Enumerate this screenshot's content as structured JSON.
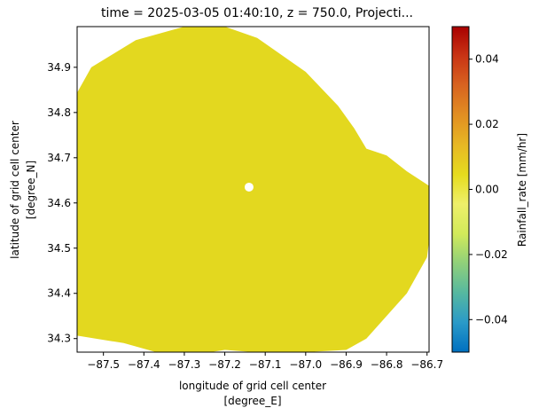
{
  "chart_data": {
    "type": "heatmap",
    "title": "time = 2025-03-05 01:40:10, z = 750.0, Projecti...",
    "xlabel": "longitude of grid cell center",
    "xlabel_units": "[degree_E]",
    "ylabel": "latitude of grid cell center",
    "ylabel_units": "[degree_N]",
    "xlim": [
      -87.565,
      -86.695
    ],
    "ylim": [
      34.27,
      34.99
    ],
    "x_ticks": [
      {
        "value": -87.5,
        "label": "−87.5"
      },
      {
        "value": -87.4,
        "label": "−87.4"
      },
      {
        "value": -87.3,
        "label": "−87.3"
      },
      {
        "value": -87.2,
        "label": "−87.2"
      },
      {
        "value": -87.1,
        "label": "−87.1"
      },
      {
        "value": -87.0,
        "label": "−87.0"
      },
      {
        "value": -86.9,
        "label": "−86.9"
      },
      {
        "value": -86.8,
        "label": "−86.8"
      },
      {
        "value": -86.7,
        "label": "−86.7"
      }
    ],
    "y_ticks": [
      {
        "value": 34.3,
        "label": "34.3"
      },
      {
        "value": 34.4,
        "label": "34.4"
      },
      {
        "value": 34.5,
        "label": "34.5"
      },
      {
        "value": 34.6,
        "label": "34.6"
      },
      {
        "value": 34.7,
        "label": "34.7"
      },
      {
        "value": 34.8,
        "label": "34.8"
      },
      {
        "value": 34.9,
        "label": "34.9"
      }
    ],
    "field": {
      "value": 0.0,
      "color": "#e3d81f",
      "footprint_lon": [
        -87.59,
        -87.45,
        -87.35,
        -87.27,
        -87.2,
        -87.1,
        -87.0,
        -86.9,
        -86.85,
        -86.75,
        -86.7,
        -86.69,
        -86.69,
        -86.75,
        -86.8,
        -86.85,
        -86.88,
        -86.92,
        -87.0,
        -87.12,
        -87.2,
        -87.3,
        -87.42,
        -87.53,
        -87.58
      ],
      "footprint_lat": [
        34.31,
        34.29,
        34.265,
        34.265,
        34.275,
        34.268,
        34.27,
        34.275,
        34.3,
        34.4,
        34.48,
        34.55,
        34.635,
        34.67,
        34.705,
        34.72,
        34.765,
        34.815,
        34.89,
        34.965,
        34.99,
        34.99,
        34.96,
        34.9,
        34.82
      ],
      "gaps": [
        {
          "lon": -87.14,
          "lat": 34.635,
          "note": "small circular gap at radar center"
        }
      ]
    },
    "colorbar": {
      "label": "Rainfall_rate [mm/hr]",
      "range": [
        -0.05,
        0.05
      ],
      "ticks": [
        {
          "value": 0.04,
          "label": "0.04"
        },
        {
          "value": 0.02,
          "label": "0.02"
        },
        {
          "value": 0.0,
          "label": "0.00"
        },
        {
          "value": -0.02,
          "label": "−0.02"
        },
        {
          "value": -0.04,
          "label": "−0.04"
        }
      ],
      "colors": [
        "#0070c0",
        "#2a9ac8",
        "#56b8a0",
        "#90d07a",
        "#d2ea5a",
        "#eeef6a",
        "#e6dc1e",
        "#e7b824",
        "#e28f22",
        "#d86420",
        "#c93515",
        "#a90000"
      ]
    }
  }
}
